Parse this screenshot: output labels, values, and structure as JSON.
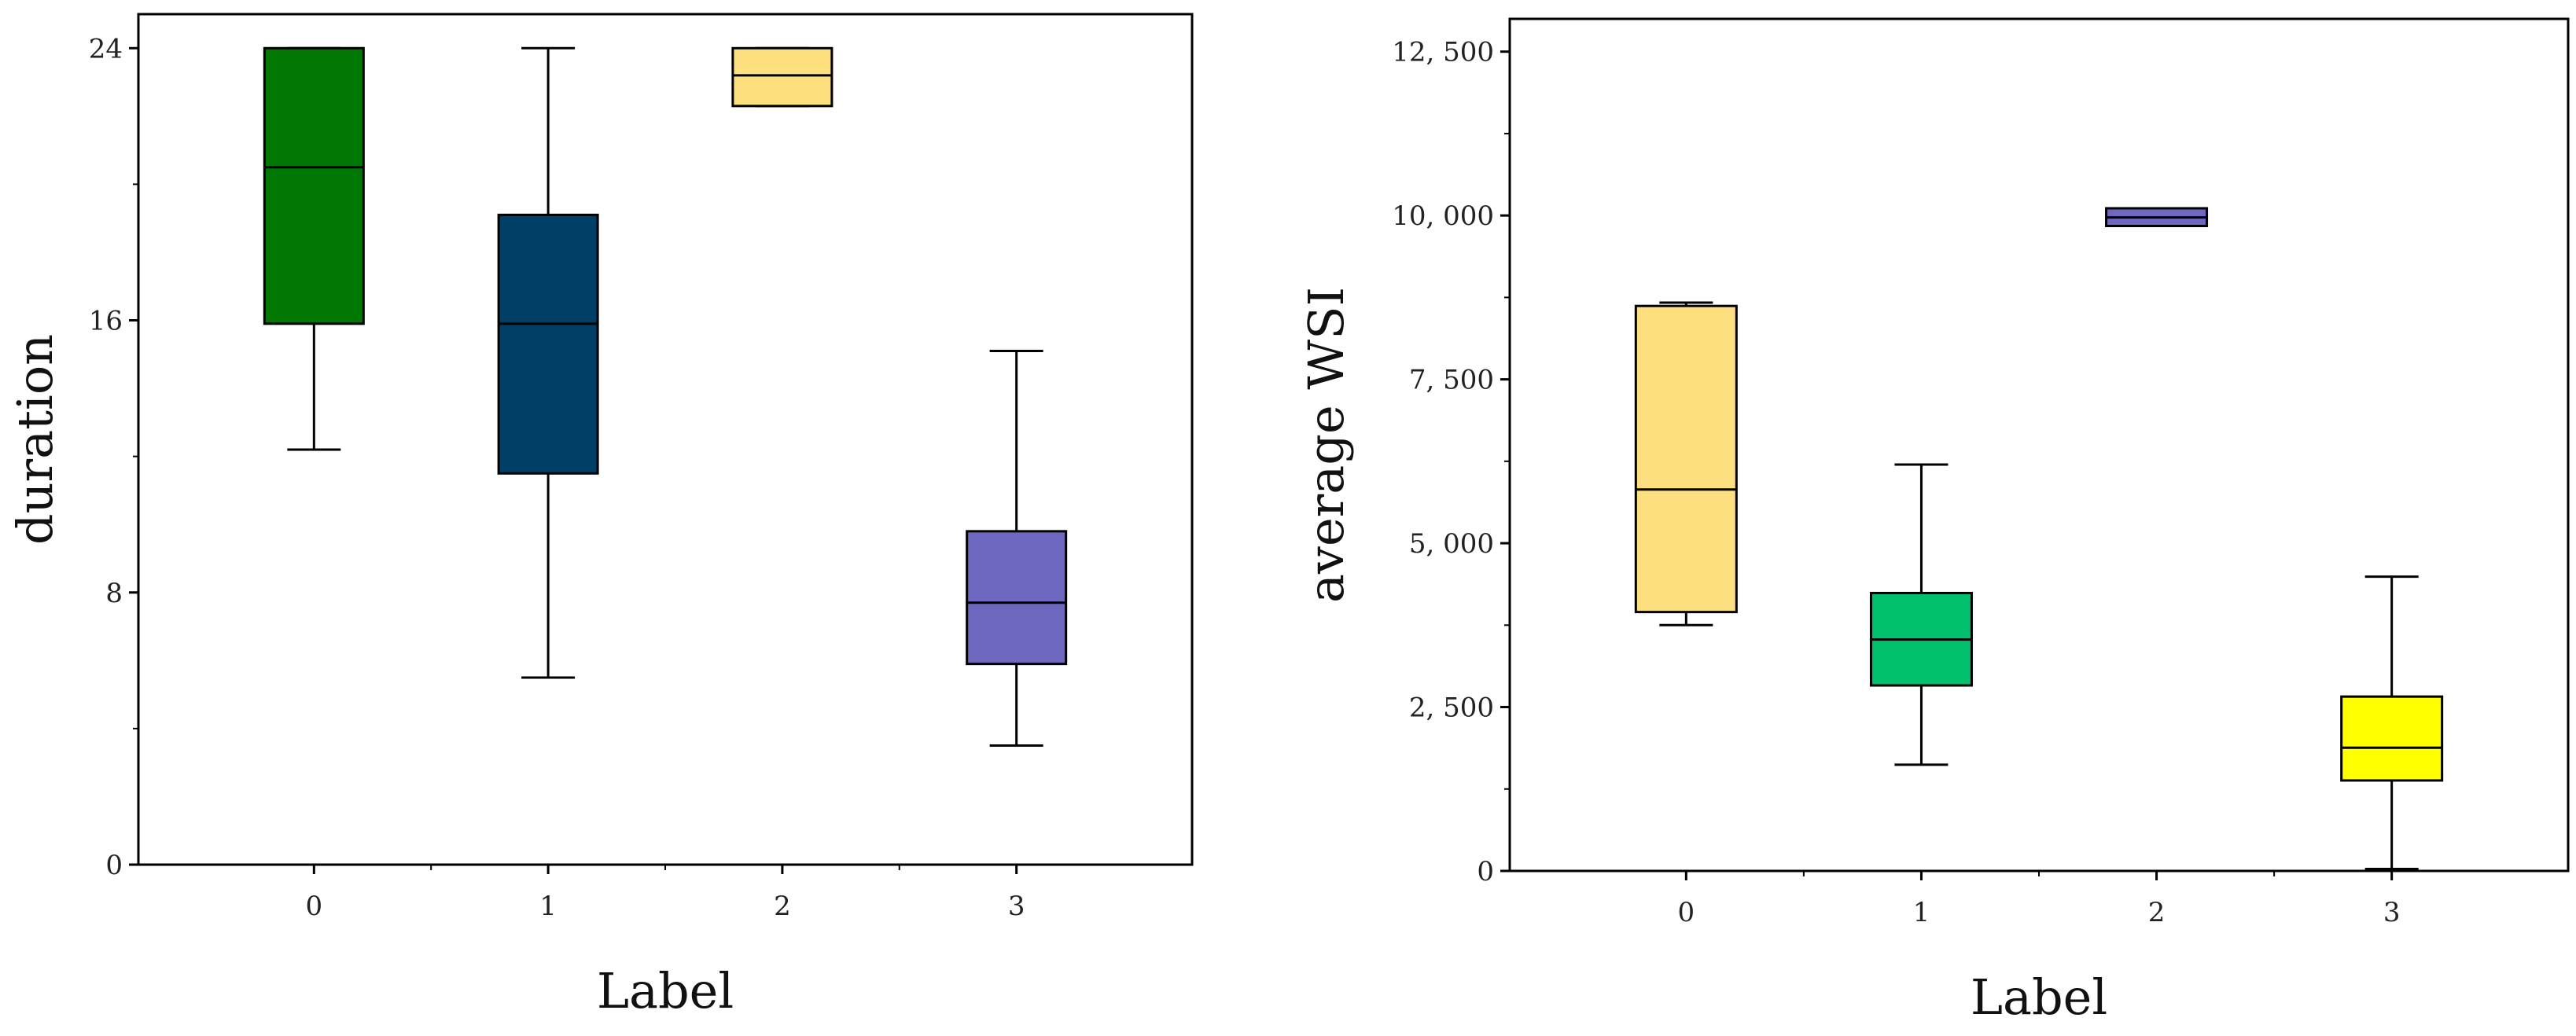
{
  "chart_data": [
    {
      "type": "box",
      "title": "",
      "xlabel": "Label",
      "ylabel": "duration",
      "ylim": [
        0,
        25
      ],
      "yticks": [
        0,
        8,
        16,
        24
      ],
      "ytick_labels": [
        "0",
        "8",
        "16",
        "24"
      ],
      "minor_ticks": true,
      "categories": [
        "0",
        "1",
        "2",
        "3"
      ],
      "boxes": [
        {
          "label": "0",
          "whisker_low": 12.2,
          "q1": 15.9,
          "median": 20.5,
          "q3": 24.0,
          "whisker_high": 24.0,
          "color": "#007700"
        },
        {
          "label": "1",
          "whisker_low": 5.5,
          "q1": 11.5,
          "median": 15.9,
          "q3": 19.1,
          "whisker_high": 24.0,
          "color": "#003f66"
        },
        {
          "label": "2",
          "whisker_low": 22.3,
          "q1": 22.3,
          "median": 23.2,
          "q3": 24.0,
          "whisker_high": 24.0,
          "color": "#fddf80"
        },
        {
          "label": "3",
          "whisker_low": 3.5,
          "q1": 5.9,
          "median": 7.7,
          "q3": 9.8,
          "whisker_high": 15.1,
          "color": "#6f68c1"
        }
      ]
    },
    {
      "type": "box",
      "title": "",
      "xlabel": "Label",
      "ylabel": "average WSI",
      "ylim": [
        0,
        13000
      ],
      "yticks": [
        0,
        2500,
        5000,
        7500,
        10000,
        12500
      ],
      "ytick_labels": [
        "0",
        "2, 500",
        "5, 000",
        "7, 500",
        "10, 000",
        "12, 500"
      ],
      "minor_ticks": true,
      "categories": [
        "0",
        "1",
        "2",
        "3"
      ],
      "boxes": [
        {
          "label": "0",
          "whisker_low": 3750,
          "q1": 3950,
          "median": 5820,
          "q3": 8620,
          "whisker_high": 8670,
          "color": "#fddf80"
        },
        {
          "label": "1",
          "whisker_low": 1620,
          "q1": 2830,
          "median": 3530,
          "q3": 4240,
          "whisker_high": 6200,
          "color": "#00c06e"
        },
        {
          "label": "2",
          "whisker_low": 9840,
          "q1": 9840,
          "median": 9970,
          "q3": 10110,
          "whisker_high": 10110,
          "color": "#6f68c1"
        },
        {
          "label": "3",
          "whisker_low": 30,
          "q1": 1380,
          "median": 1880,
          "q3": 2660,
          "whisker_high": 4490,
          "color": "#ffff00"
        }
      ]
    }
  ]
}
